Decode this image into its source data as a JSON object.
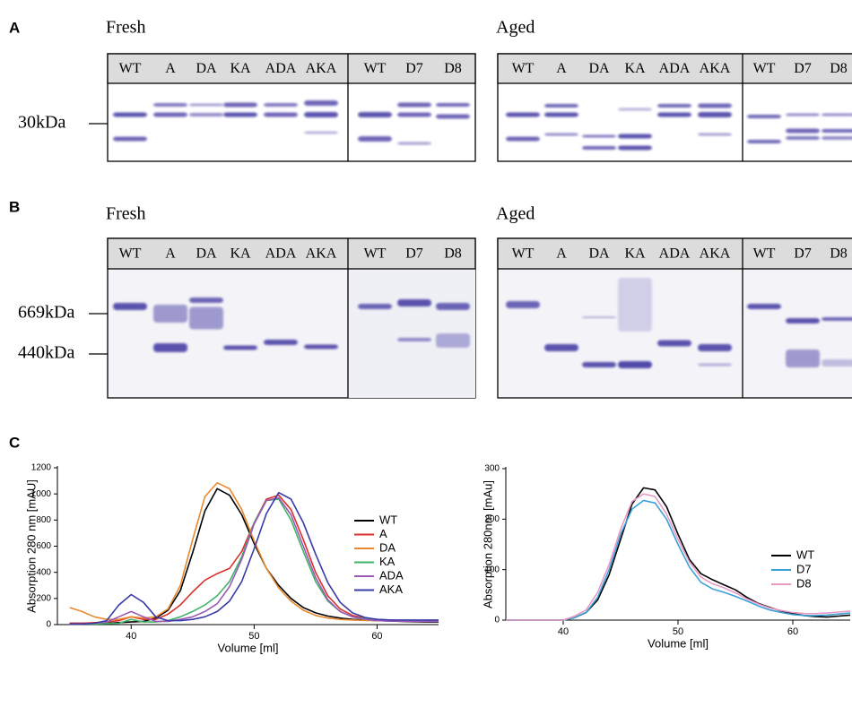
{
  "panels": [
    {
      "label": "A",
      "markers": [
        "30kDa"
      ],
      "gels": [
        {
          "title": "Fresh",
          "lanes": [
            "WT",
            "A",
            "DA",
            "KA",
            "ADA",
            "AKA",
            "WT",
            "D7",
            "D8"
          ]
        },
        {
          "title": "Aged",
          "lanes": [
            "WT",
            "A",
            "DA",
            "KA",
            "ADA",
            "AKA",
            "WT",
            "D7",
            "D8"
          ]
        }
      ]
    },
    {
      "label": "B",
      "markers": [
        "669kDa",
        "440kDa"
      ],
      "gels": [
        {
          "title": "Fresh",
          "lanes": [
            "WT",
            "A",
            "DA",
            "KA",
            "ADA",
            "AKA",
            "WT",
            "D7",
            "D8"
          ]
        },
        {
          "title": "Aged",
          "lanes": [
            "WT",
            "A",
            "DA",
            "KA",
            "ADA",
            "AKA",
            "WT",
            "D7",
            "D8"
          ]
        }
      ]
    }
  ],
  "panel_c_label": "C",
  "chart_data": [
    {
      "type": "line",
      "x_label": "Volume [ml]",
      "y_label": "Absorption 280 nm [mAU]",
      "xlim": [
        34,
        65
      ],
      "xticks": [
        40,
        50,
        60
      ],
      "ylim": [
        0,
        1200
      ],
      "yticks": [
        0,
        200,
        400,
        600,
        800,
        1000,
        1200
      ],
      "x": [
        35,
        36,
        37,
        38,
        39,
        40,
        41,
        42,
        43,
        44,
        45,
        46,
        47,
        48,
        49,
        50,
        51,
        52,
        53,
        54,
        55,
        56,
        57,
        58,
        59,
        60,
        61,
        62,
        63,
        64,
        65
      ],
      "series": [
        {
          "name": "WT",
          "color": "#000000",
          "values": [
            10,
            10,
            10,
            10,
            15,
            20,
            25,
            50,
            110,
            260,
            550,
            870,
            1040,
            990,
            840,
            620,
            430,
            300,
            200,
            130,
            90,
            65,
            50,
            40,
            35,
            30,
            28,
            25,
            22,
            20,
            20
          ]
        },
        {
          "name": "A",
          "color": "#d9302a",
          "values": [
            10,
            10,
            15,
            20,
            30,
            60,
            40,
            40,
            80,
            150,
            250,
            340,
            390,
            430,
            560,
            780,
            960,
            990,
            880,
            650,
            400,
            220,
            120,
            70,
            50,
            40,
            35,
            32,
            30,
            30,
            30
          ]
        },
        {
          "name": "DA",
          "color": "#e8892f",
          "values": [
            130,
            100,
            60,
            40,
            40,
            60,
            50,
            60,
            120,
            300,
            650,
            980,
            1085,
            1040,
            880,
            640,
            430,
            280,
            180,
            110,
            70,
            50,
            40,
            35,
            32,
            30,
            30,
            30,
            30,
            30,
            30
          ]
        },
        {
          "name": "KA",
          "color": "#3fb36a",
          "values": [
            5,
            5,
            5,
            8,
            10,
            40,
            20,
            20,
            30,
            60,
            100,
            150,
            220,
            330,
            520,
            780,
            950,
            960,
            800,
            560,
            330,
            180,
            100,
            60,
            45,
            35,
            32,
            30,
            30,
            30,
            30
          ]
        },
        {
          "name": "ADA",
          "color": "#9b59b6",
          "values": [
            5,
            5,
            10,
            20,
            60,
            100,
            60,
            25,
            25,
            40,
            60,
            100,
            160,
            290,
            500,
            770,
            950,
            970,
            840,
            600,
            360,
            190,
            100,
            60,
            40,
            30,
            28,
            26,
            25,
            25,
            25
          ]
        },
        {
          "name": "AKA",
          "color": "#3a3aa8",
          "values": [
            5,
            5,
            10,
            30,
            150,
            230,
            170,
            60,
            30,
            30,
            40,
            60,
            100,
            180,
            330,
            580,
            850,
            1010,
            960,
            780,
            540,
            320,
            170,
            90,
            55,
            40,
            36,
            35,
            35,
            35,
            35
          ]
        }
      ]
    },
    {
      "type": "line",
      "x_label": "Volume [ml]",
      "y_label": "Absorption 280nm [mAu]",
      "xlim": [
        35,
        65
      ],
      "xticks": [
        40,
        50,
        60
      ],
      "ylim": [
        0,
        300
      ],
      "yticks": [
        0,
        100,
        200,
        300
      ],
      "x": [
        35,
        36,
        37,
        38,
        39,
        40,
        41,
        42,
        43,
        44,
        45,
        46,
        47,
        48,
        49,
        50,
        51,
        52,
        53,
        54,
        55,
        56,
        57,
        58,
        59,
        60,
        61,
        62,
        63,
        64,
        65
      ],
      "series": [
        {
          "name": "WT",
          "color": "#000000",
          "values": [
            0,
            0,
            0,
            0,
            0,
            0,
            5,
            15,
            40,
            90,
            160,
            230,
            262,
            258,
            225,
            170,
            120,
            92,
            80,
            70,
            60,
            45,
            33,
            25,
            18,
            13,
            9,
            7,
            6,
            8,
            10
          ]
        },
        {
          "name": "D7",
          "color": "#3aa0d8",
          "values": [
            0,
            0,
            0,
            0,
            0,
            0,
            5,
            15,
            45,
            100,
            170,
            220,
            237,
            232,
            200,
            150,
            105,
            75,
            62,
            55,
            47,
            38,
            28,
            20,
            15,
            11,
            9,
            9,
            10,
            12,
            14
          ]
        },
        {
          "name": "D8",
          "color": "#e79ac4",
          "values": [
            0,
            0,
            0,
            0,
            0,
            0,
            8,
            20,
            55,
            110,
            180,
            235,
            250,
            245,
            210,
            160,
            115,
            85,
            72,
            64,
            54,
            42,
            32,
            24,
            19,
            15,
            13,
            13,
            14,
            16,
            18
          ]
        }
      ]
    }
  ]
}
